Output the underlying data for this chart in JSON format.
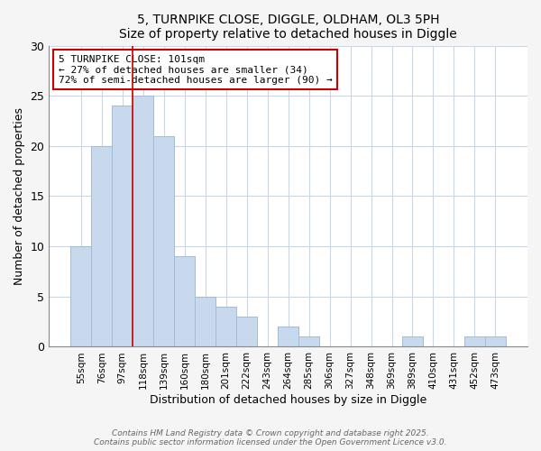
{
  "title": "5, TURNPIKE CLOSE, DIGGLE, OLDHAM, OL3 5PH",
  "subtitle": "Size of property relative to detached houses in Diggle",
  "xlabel": "Distribution of detached houses by size in Diggle",
  "ylabel": "Number of detached properties",
  "categories": [
    "55sqm",
    "76sqm",
    "97sqm",
    "118sqm",
    "139sqm",
    "160sqm",
    "180sqm",
    "201sqm",
    "222sqm",
    "243sqm",
    "264sqm",
    "285sqm",
    "306sqm",
    "327sqm",
    "348sqm",
    "369sqm",
    "389sqm",
    "410sqm",
    "431sqm",
    "452sqm",
    "473sqm"
  ],
  "values": [
    10,
    20,
    24,
    25,
    21,
    9,
    5,
    4,
    3,
    0,
    2,
    1,
    0,
    0,
    0,
    0,
    1,
    0,
    0,
    1,
    1
  ],
  "bar_color": "#c8d9ee",
  "bar_edge_color": "#a0bcd8",
  "vline_x_index": 2,
  "vline_color": "#cc0000",
  "annotation_text": "5 TURNPIKE CLOSE: 101sqm\n← 27% of detached houses are smaller (34)\n72% of semi-detached houses are larger (90) →",
  "annotation_box_color": "#ffffff",
  "annotation_box_edge": "#cc0000",
  "ylim": [
    0,
    30
  ],
  "yticks": [
    0,
    5,
    10,
    15,
    20,
    25,
    30
  ],
  "footer": "Contains HM Land Registry data © Crown copyright and database right 2025.\nContains public sector information licensed under the Open Government Licence v3.0.",
  "bg_color": "#f5f5f5",
  "plot_bg_color": "#ffffff",
  "grid_color": "#c8d8e8"
}
